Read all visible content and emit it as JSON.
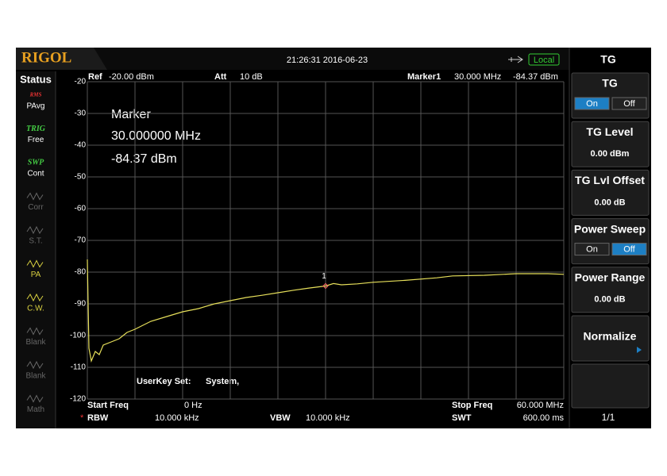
{
  "header": {
    "logo": "RIGOL",
    "datetime": "21:26:31 2016-06-23",
    "mode": "Local"
  },
  "status": {
    "title": "Status",
    "items": [
      {
        "top": "RMS",
        "label": "PAvg"
      },
      {
        "top": "TRIG",
        "label": "Free"
      },
      {
        "top": "SWP",
        "label": "Cont"
      },
      {
        "label": "Corr"
      },
      {
        "label": "S.T."
      },
      {
        "label": "PA"
      },
      {
        "label": "C.W."
      },
      {
        "label": "Blank"
      },
      {
        "label": "Blank"
      },
      {
        "label": "Math"
      }
    ]
  },
  "info": {
    "ref_label": "Ref",
    "ref": "-20.00 dBm",
    "att_label": "Att",
    "att": "10 dB",
    "marker_label": "Marker1",
    "marker_freq": "30.000 MHz",
    "marker_amp": "-84.37 dBm"
  },
  "marker_readout": [
    "Marker",
    "30.000000 MHz",
    "-84.37 dBm"
  ],
  "userkey": [
    "UserKey Set:",
    "System,"
  ],
  "footer": {
    "start_label": "Start Freq",
    "start": "0 Hz",
    "stop_label": "Stop Freq",
    "stop": "60.000 MHz",
    "rbw_flag": "*",
    "rbw_label": "RBW",
    "rbw": "10.000 kHz",
    "vbw_label": "VBW",
    "vbw": "10.000 kHz",
    "swt_label": "SWT",
    "swt": "600.00 ms"
  },
  "menu": {
    "title": "TG",
    "items": [
      {
        "title": "TG",
        "options": [
          "On",
          "Off"
        ],
        "selected": "On"
      },
      {
        "title": "TG Level",
        "value": "0.00 dBm"
      },
      {
        "title": "TG Lvl Offset",
        "value": "0.00 dB"
      },
      {
        "title": "Power Sweep",
        "options": [
          "On",
          "Off"
        ],
        "selected": "Off"
      },
      {
        "title": "Power Range",
        "value": "0.00 dB"
      },
      {
        "title": "Normalize"
      }
    ],
    "page": "1/1"
  },
  "chart_data": {
    "type": "line",
    "x": [
      0,
      0.2,
      0.5,
      1,
      1.5,
      2,
      3,
      4,
      5,
      6,
      8,
      10,
      12,
      14,
      16,
      18,
      20,
      22,
      24,
      26,
      28,
      30,
      31,
      32,
      34,
      36,
      40,
      44,
      46,
      50,
      54,
      58,
      60
    ],
    "series": [
      {
        "color": "#e6df5a",
        "values": [
          -76,
          -104,
          -108,
          -105,
          -106,
          -103,
          -102,
          -101,
          -99,
          -98,
          -95.5,
          -94,
          -92.5,
          -91.5,
          -90,
          -89,
          -88,
          -87.3,
          -86.5,
          -85.7,
          -85,
          -84.37,
          -83.6,
          -84,
          -83.7,
          -83.2,
          -82.6,
          -81.8,
          -81.2,
          -81,
          -80.5,
          -80.5,
          -80.7
        ]
      }
    ],
    "xlim": [
      0,
      60
    ],
    "xticks": [
      0,
      6,
      12,
      18,
      24,
      30,
      36,
      42,
      48,
      54,
      60
    ],
    "ylim": [
      -120,
      -20
    ],
    "yticks": [
      -20,
      -30,
      -40,
      -50,
      -60,
      -70,
      -80,
      -90,
      -100,
      -110,
      -120
    ],
    "grid": true,
    "marker": {
      "x": 30,
      "y": -84.37,
      "label": "1"
    }
  }
}
